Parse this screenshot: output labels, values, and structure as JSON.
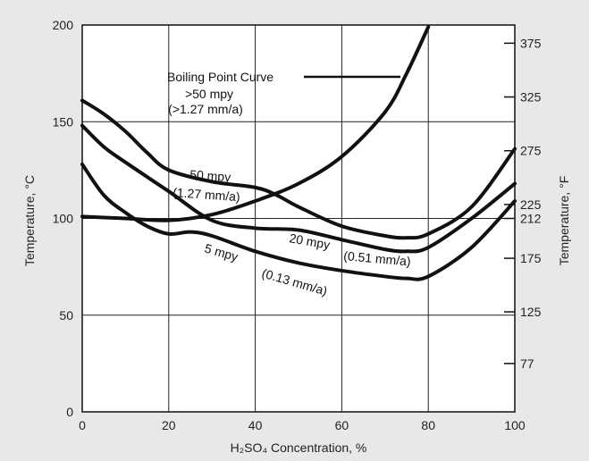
{
  "chart_data": {
    "type": "line",
    "xlabel": "H₂SO₄ Concentration, %",
    "ylabel": "Temperature, °C",
    "y2label": "Temperature, °F",
    "xlim": [
      0,
      100
    ],
    "ylim": [
      0,
      200
    ],
    "grid": true,
    "x_ticks": [
      "0",
      "20",
      "40",
      "60",
      "80",
      "100"
    ],
    "y_ticks": [
      "0",
      "50",
      "100",
      "150",
      "200"
    ],
    "y2_ticks": [
      {
        "label": "375",
        "value": 190.6
      },
      {
        "label": "325",
        "value": 162.8
      },
      {
        "label": "275",
        "value": 135.0
      },
      {
        "label": "225",
        "value": 107.2
      },
      {
        "label": "212",
        "value": 100.0
      },
      {
        "label": "175",
        "value": 79.4
      },
      {
        "label": "125",
        "value": 51.7
      },
      {
        "label": "77",
        "value": 25.0
      }
    ],
    "series": [
      {
        "name": "Boiling Point Curve",
        "x": [
          0,
          10,
          20,
          30,
          40,
          50,
          60,
          70,
          75,
          80
        ],
        "y": [
          101,
          100,
          99,
          102,
          109,
          118,
          132,
          155,
          175,
          199
        ]
      },
      {
        "name": "50 mpy",
        "x": [
          0,
          5,
          10,
          15,
          20,
          30,
          40,
          45,
          50,
          60,
          70,
          75,
          80,
          90,
          100
        ],
        "y": [
          161,
          154,
          145,
          134,
          125,
          119,
          116,
          112,
          106,
          96,
          91,
          90,
          92,
          106,
          136
        ]
      },
      {
        "name": "20 mpy",
        "x": [
          0,
          5,
          10,
          20,
          30,
          40,
          50,
          60,
          70,
          75,
          80,
          90,
          100
        ],
        "y": [
          148,
          137,
          129,
          114,
          99,
          95,
          94,
          89,
          84,
          83,
          85,
          100,
          118
        ]
      },
      {
        "name": "5 mpy",
        "x": [
          0,
          5,
          10,
          15,
          20,
          25,
          30,
          40,
          50,
          60,
          70,
          75,
          80,
          90,
          100
        ],
        "y": [
          128,
          112,
          103,
          96,
          92,
          93,
          91,
          83,
          77,
          73,
          70,
          69,
          70,
          85,
          109
        ]
      }
    ],
    "annotations": {
      "boiling_1": "Boiling Point  Curve",
      "boiling_2": ">50 mpy",
      "boiling_3": "(>1.27 mm/a)",
      "s50_a": "50 mpy",
      "s50_b": "(1.27 mm/a)",
      "s20_a": "20 mpy",
      "s20_b": "(0.51 mm/a)",
      "s5_a": "5 mpy",
      "s5_b": "(0.13 mm/a)"
    }
  }
}
